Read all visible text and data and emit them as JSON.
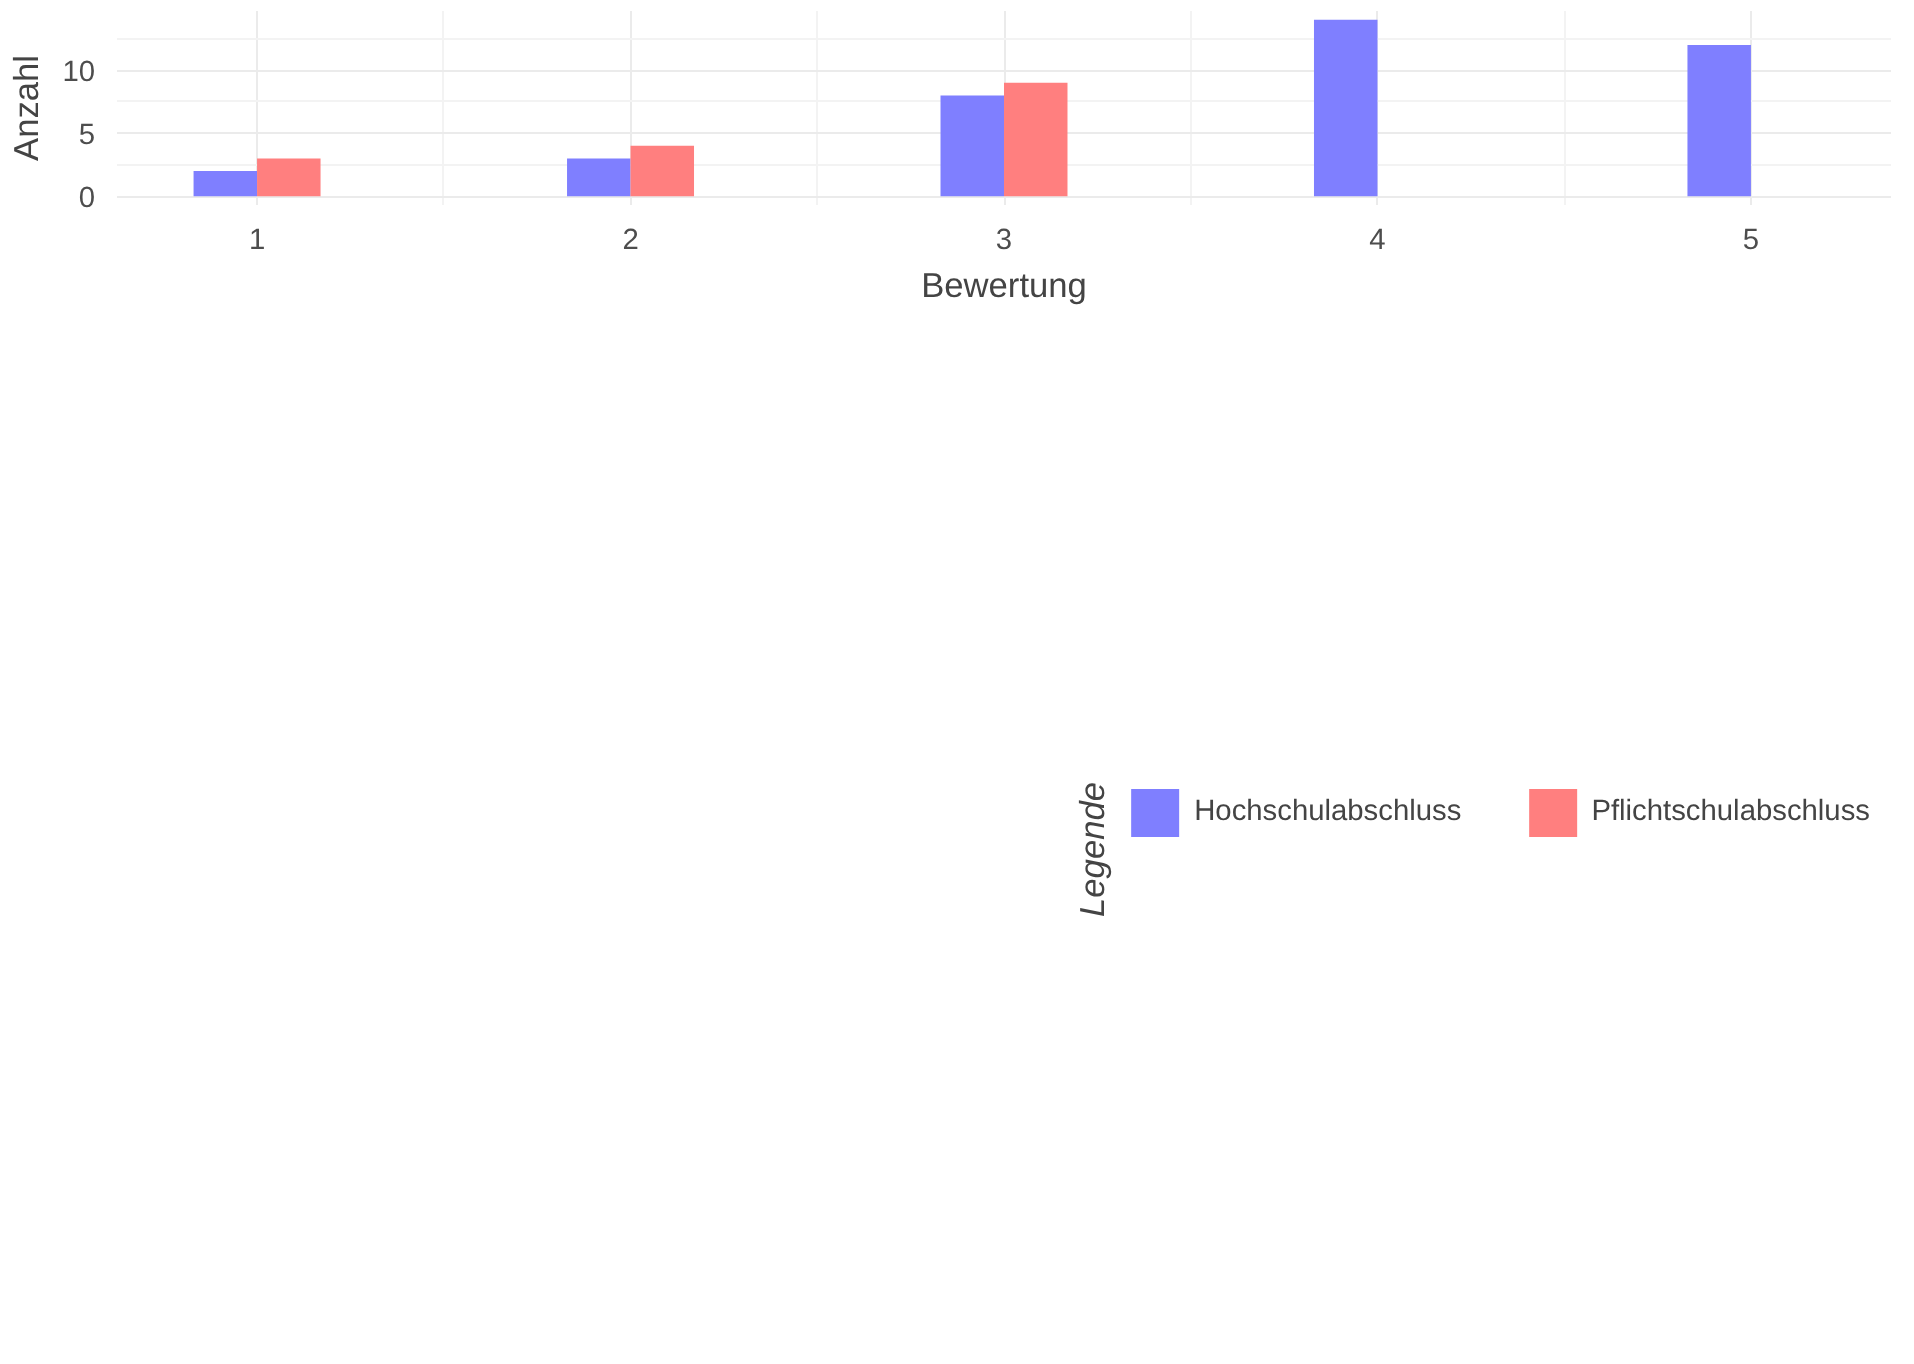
{
  "chart_data": {
    "type": "bar",
    "xlabel": "Bewertung",
    "ylabel": "Anzahl",
    "legend_title": "Legende",
    "x": [
      1,
      2,
      3,
      4,
      5
    ],
    "series": [
      {
        "name": "Hochschulabschluss",
        "color": "#7f7fff",
        "values": [
          2,
          3,
          8,
          14,
          12
        ]
      },
      {
        "name": "Pflichtschulabschluss",
        "color": "#ff7f7f",
        "values": [
          3,
          4,
          9,
          null,
          null
        ]
      }
    ],
    "xlim": [
      0.625,
      5.375
    ],
    "ylim": [
      -0.7,
      14.7
    ],
    "xticks": [
      1,
      2,
      3,
      4,
      5
    ],
    "yticks": [
      0,
      5,
      10
    ],
    "grid": true,
    "legend": "bottom"
  }
}
